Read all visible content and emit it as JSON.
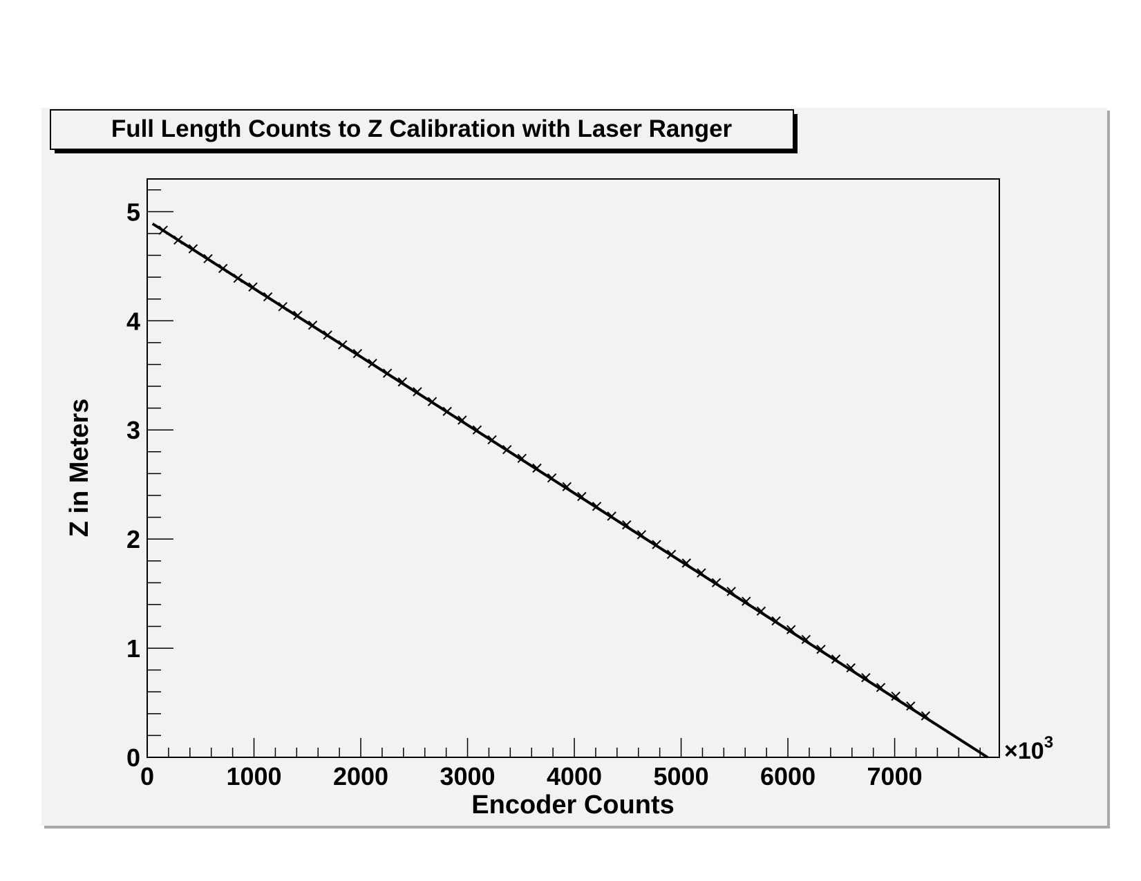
{
  "chart_data": {
    "type": "scatter",
    "title": "Full Length Counts to Z Calibration with Laser Ranger",
    "xlabel": "Encoder Counts",
    "ylabel": "Z in Meters",
    "x_multiplier_label": "×10",
    "x_multiplier_exponent": "3",
    "xlim": [
      0,
      7980
    ],
    "ylim": [
      0,
      5.3
    ],
    "x_ticks": [
      0,
      1000,
      2000,
      3000,
      4000,
      5000,
      6000,
      7000
    ],
    "x_tick_labels": [
      "0",
      "1000",
      "2000",
      "3000",
      "4000",
      "5000",
      "6000",
      "7000"
    ],
    "y_ticks": [
      0,
      1,
      2,
      3,
      4,
      5
    ],
    "y_tick_labels": [
      "0",
      "1",
      "2",
      "3",
      "4",
      "5"
    ],
    "grid": false,
    "legend": "none",
    "fit_line": {
      "x": [
        50,
        7870
      ],
      "y": [
        4.89,
        0.0
      ]
    },
    "series": [
      {
        "marker": "x",
        "x": [
          150,
          290,
          430,
          570,
          710,
          850,
          990,
          1130,
          1270,
          1410,
          1550,
          1690,
          1830,
          1970,
          2110,
          2250,
          2390,
          2530,
          2670,
          2810,
          2950,
          3090,
          3230,
          3370,
          3510,
          3650,
          3790,
          3930,
          4070,
          4210,
          4350,
          4490,
          4630,
          4770,
          4910,
          5050,
          5190,
          5330,
          5470,
          5610,
          5750,
          5890,
          6030,
          6170,
          6310,
          6450,
          6590,
          6730,
          6870,
          7010,
          7150,
          7290
        ],
        "y": [
          4.83,
          4.74,
          4.66,
          4.57,
          4.48,
          4.39,
          4.31,
          4.22,
          4.13,
          4.05,
          3.96,
          3.87,
          3.78,
          3.7,
          3.61,
          3.52,
          3.44,
          3.35,
          3.26,
          3.17,
          3.09,
          3.0,
          2.91,
          2.82,
          2.74,
          2.65,
          2.56,
          2.48,
          2.39,
          2.3,
          2.21,
          2.13,
          2.04,
          1.95,
          1.86,
          1.78,
          1.69,
          1.6,
          1.52,
          1.43,
          1.34,
          1.25,
          1.17,
          1.08,
          0.99,
          0.9,
          0.82,
          0.73,
          0.64,
          0.56,
          0.47,
          0.38
        ]
      }
    ],
    "colors": {
      "background": "#ffffff",
      "frame": "#f2f2f2",
      "ink": "#000000",
      "frame_shadow": "#999999"
    }
  }
}
